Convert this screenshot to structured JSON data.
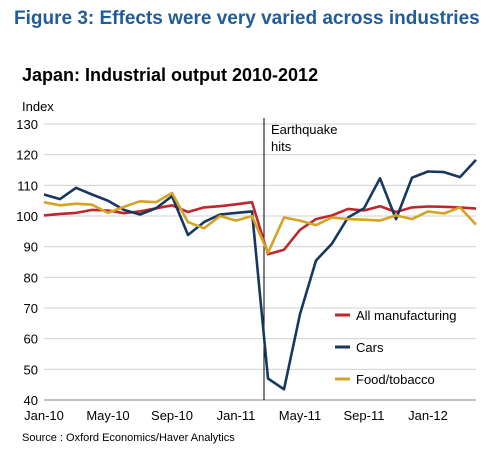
{
  "figure_title": "Figure 3: Effects were very varied across industries",
  "source": "Source : Oxford Economics/Haver Analytics",
  "chart_data": {
    "type": "line",
    "title": "Japan: Industrial output 2010-2012",
    "ylabel": "Index",
    "xlabel": "",
    "ylim": [
      40,
      130
    ],
    "yticks": [
      40,
      50,
      60,
      70,
      80,
      90,
      100,
      110,
      120,
      130
    ],
    "x": [
      "Jan-10",
      "Feb-10",
      "Mar-10",
      "Apr-10",
      "May-10",
      "Jun-10",
      "Jul-10",
      "Aug-10",
      "Sep-10",
      "Oct-10",
      "Nov-10",
      "Dec-10",
      "Jan-11",
      "Feb-11",
      "Mar-11",
      "Apr-11",
      "May-11",
      "Jun-11",
      "Jul-11",
      "Aug-11",
      "Sep-11",
      "Oct-11",
      "Nov-11",
      "Dec-11",
      "Jan-12",
      "Feb-12",
      "Mar-12",
      "Apr-12"
    ],
    "xtick_labels": [
      "Jan-10",
      "May-10",
      "Sep-10",
      "Jan-11",
      "May-11",
      "Sep-11",
      "Jan-12"
    ],
    "grid": true,
    "legend_position": "bottom-right",
    "annotation": {
      "text_lines": [
        "Earthquake",
        "hits"
      ],
      "x": "Mar-11"
    },
    "series": [
      {
        "name": "All manufacturing",
        "color": "#c0272d",
        "values": [
          100.2,
          100.7,
          101.0,
          102.0,
          101.8,
          100.9,
          101.5,
          102.5,
          103.5,
          101.3,
          102.8,
          103.2,
          103.8,
          104.5,
          87.5,
          89.0,
          95.5,
          99.0,
          100.2,
          102.3,
          101.8,
          103.2,
          101.3,
          102.8,
          103.1,
          103.0,
          102.8,
          102.4
        ]
      },
      {
        "name": "Cars",
        "color": "#17375e",
        "values": [
          107.0,
          105.5,
          109.2,
          107.0,
          105.0,
          102.0,
          100.5,
          102.5,
          106.5,
          93.8,
          98.0,
          100.5,
          101.0,
          101.5,
          47.0,
          43.5,
          68.0,
          85.5,
          91.0,
          99.5,
          102.5,
          112.3,
          99.0,
          112.5,
          114.5,
          114.3,
          112.7,
          118.3
        ]
      },
      {
        "name": "Food/tobacco",
        "color": "#d4a326",
        "values": [
          104.5,
          103.5,
          104.0,
          103.7,
          101.0,
          103.0,
          104.8,
          104.5,
          107.5,
          98.0,
          96.0,
          100.0,
          98.5,
          100.0,
          88.0,
          99.5,
          98.5,
          97.0,
          99.5,
          99.0,
          98.8,
          98.5,
          100.2,
          99.0,
          101.5,
          100.8,
          102.8,
          97.2
        ]
      }
    ]
  }
}
